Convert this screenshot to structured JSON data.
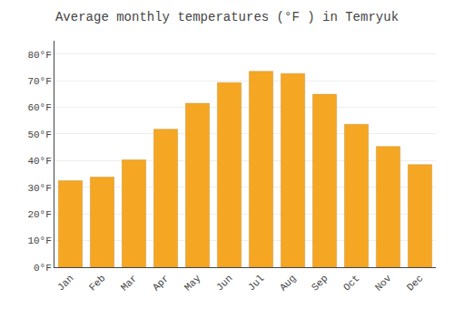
{
  "chart_data": {
    "type": "bar",
    "title": "Average monthly temperatures (°F ) in Temryuk",
    "categories": [
      "Jan",
      "Feb",
      "Mar",
      "Apr",
      "May",
      "Jun",
      "Jul",
      "Aug",
      "Sep",
      "Oct",
      "Nov",
      "Dec"
    ],
    "values": [
      32.5,
      33.8,
      40.3,
      51.8,
      61.5,
      69.3,
      73.5,
      72.7,
      64.9,
      53.6,
      45.3,
      38.5
    ],
    "color": "#F5A623",
    "ylim": [
      0,
      85
    ],
    "yticks": [
      {
        "value": 0,
        "label": "0°F"
      },
      {
        "value": 10,
        "label": "10°F"
      },
      {
        "value": 20,
        "label": "20°F"
      },
      {
        "value": 30,
        "label": "30°F"
      },
      {
        "value": 40,
        "label": "40°F"
      },
      {
        "value": 50,
        "label": "50°F"
      },
      {
        "value": 60,
        "label": "60°F"
      },
      {
        "value": 70,
        "label": "70°F"
      },
      {
        "value": 80,
        "label": "80°F"
      }
    ],
    "grid": true
  }
}
